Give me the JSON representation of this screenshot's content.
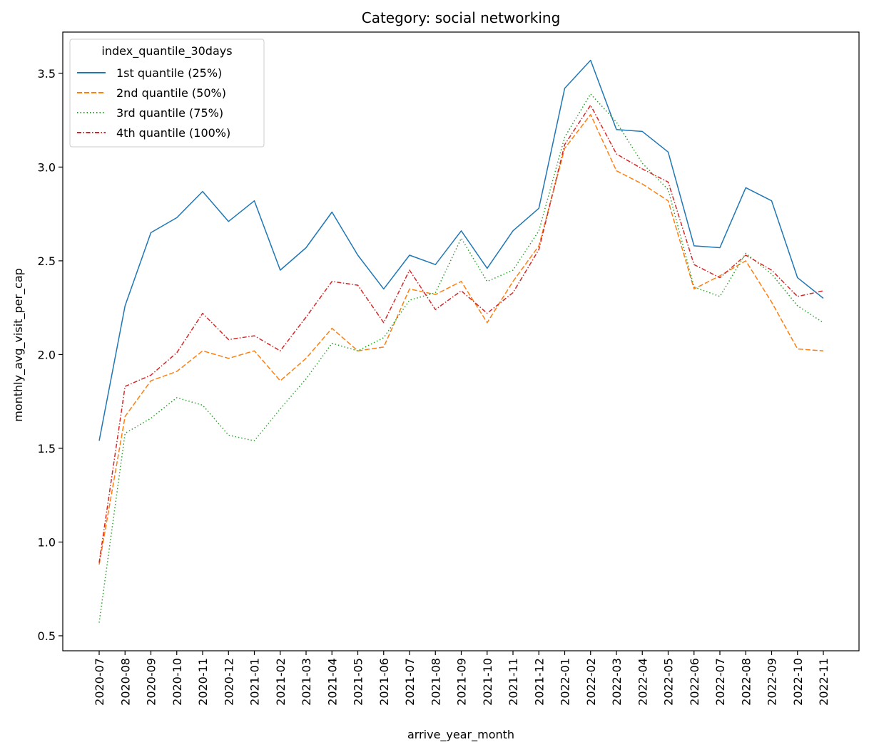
{
  "chart_data": {
    "type": "line",
    "title": "Category: social networking",
    "xlabel": "arrive_year_month",
    "ylabel": "monthly_avg_visit_per_cap",
    "ylim": [
      0.42,
      3.72
    ],
    "yticks": [
      0.5,
      1.0,
      1.5,
      2.0,
      2.5,
      3.0,
      3.5
    ],
    "ytick_labels": [
      "0.5",
      "1.0",
      "1.5",
      "2.0",
      "2.5",
      "3.0",
      "3.5"
    ],
    "grid": false,
    "legend": {
      "title": "index_quantile_30days",
      "placement": "upper-left"
    },
    "categories": [
      "2020-07",
      "2020-08",
      "2020-09",
      "2020-10",
      "2020-11",
      "2020-12",
      "2021-01",
      "2021-02",
      "2021-03",
      "2021-04",
      "2021-05",
      "2021-06",
      "2021-07",
      "2021-08",
      "2021-09",
      "2021-10",
      "2021-11",
      "2021-12",
      "2022-01",
      "2022-02",
      "2022-03",
      "2022-04",
      "2022-05",
      "2022-06",
      "2022-07",
      "2022-08",
      "2022-09",
      "2022-10",
      "2022-11"
    ],
    "series": [
      {
        "name": "1st quantile (25%)",
        "color": "#1f77b4",
        "dash": "solid",
        "values": [
          1.54,
          2.26,
          2.65,
          2.73,
          2.87,
          2.71,
          2.82,
          2.45,
          2.57,
          2.76,
          2.53,
          2.35,
          2.53,
          2.48,
          2.66,
          2.46,
          2.66,
          2.78,
          3.42,
          3.57,
          3.2,
          3.19,
          3.08,
          2.58,
          2.57,
          2.89,
          2.82,
          2.41,
          2.3
        ]
      },
      {
        "name": "2nd quantile (50%)",
        "color": "#ff7f0e",
        "dash": "dashed",
        "values": [
          0.88,
          1.67,
          1.86,
          1.91,
          2.02,
          1.98,
          2.02,
          1.86,
          1.98,
          2.14,
          2.02,
          2.04,
          2.35,
          2.32,
          2.39,
          2.17,
          2.39,
          2.58,
          3.1,
          3.28,
          2.98,
          2.91,
          2.82,
          2.35,
          2.42,
          2.5,
          2.28,
          2.03,
          2.02
        ]
      },
      {
        "name": "3rd quantile (75%)",
        "color": "#2ca02c",
        "dash": "dotted",
        "values": [
          0.57,
          1.58,
          1.66,
          1.77,
          1.73,
          1.57,
          1.54,
          1.71,
          1.87,
          2.06,
          2.02,
          2.09,
          2.29,
          2.33,
          2.62,
          2.39,
          2.45,
          2.66,
          3.16,
          3.39,
          3.24,
          3.02,
          2.88,
          2.36,
          2.31,
          2.54,
          2.43,
          2.26,
          2.17
        ]
      },
      {
        "name": "4th quantile (100%)",
        "color": "#d62728",
        "dash": "dashdot",
        "values": [
          0.89,
          1.83,
          1.89,
          2.01,
          2.22,
          2.08,
          2.1,
          2.02,
          2.2,
          2.39,
          2.37,
          2.17,
          2.45,
          2.24,
          2.34,
          2.22,
          2.33,
          2.56,
          3.12,
          3.33,
          3.07,
          2.99,
          2.92,
          2.48,
          2.41,
          2.53,
          2.45,
          2.31,
          2.34
        ]
      }
    ]
  }
}
